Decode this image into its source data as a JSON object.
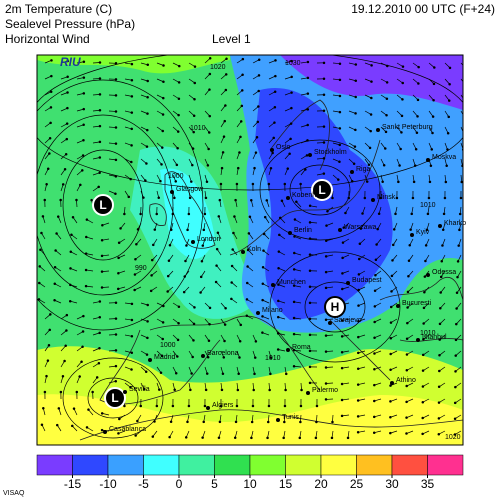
{
  "header": {
    "lines": [
      "2m Temperature (C)",
      "Sealevel Pressure (hPa)",
      "Horizontal Wind"
    ],
    "level": "Level  1",
    "datetime": "19.12.2010 00 UTC (F+24)"
  },
  "logo": "RIU",
  "isobar_labels": [
    "1020",
    "1030",
    "1010",
    "1000",
    "990",
    "1000",
    "1010",
    "1010",
    "1010",
    "1020"
  ],
  "pressure_centers": [
    "L",
    "L",
    "L",
    "H"
  ],
  "cities": [
    "Glasgow",
    "London",
    "Koln",
    "Kobenh",
    "Oslo",
    "Stockholm",
    "Riga",
    "Sankt Peterburg",
    "Moskva",
    "Minsk",
    "Warszawa",
    "Berlin",
    "Kyiv",
    "Kharko",
    "Munchen",
    "Budapest",
    "Milano",
    "Sarajevo",
    "Bucuresti",
    "Odessa",
    "Istanbul",
    "Roma",
    "Barcelona",
    "Madrid",
    "Sevilla",
    "Palermo",
    "Algiers",
    "Athino",
    "Tunis",
    "Casablanca"
  ],
  "colorbar": {
    "colors": [
      "#7a3cff",
      "#2f48ff",
      "#3aa0ff",
      "#40ffff",
      "#40f0a0",
      "#30e050",
      "#80ff30",
      "#d0ff30",
      "#ffff40",
      "#ffc020",
      "#ff5040",
      "#ff3090"
    ],
    "ticks": [
      -15,
      -10,
      -5,
      0,
      5,
      10,
      15,
      20,
      25,
      30,
      35
    ]
  },
  "footer": "VISAQ"
}
